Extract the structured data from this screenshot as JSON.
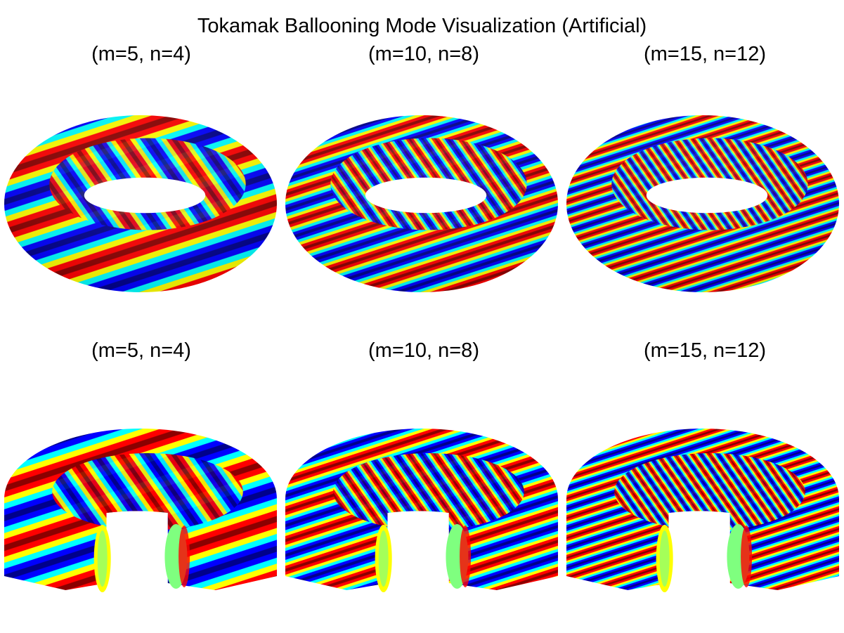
{
  "figure": {
    "title": "Tokamak Ballooning Mode Visualization (Artificial)",
    "colormap": [
      "#00008b",
      "#0000ff",
      "#00ffff",
      "#ffff00",
      "#ff0000",
      "#8b0000"
    ],
    "panels": [
      {
        "label": "(m=5, n=4)",
        "m": 5,
        "n": 4,
        "view": "full-torus"
      },
      {
        "label": "(m=10, n=8)",
        "m": 10,
        "n": 8,
        "view": "full-torus"
      },
      {
        "label": "(m=15, n=12)",
        "m": 15,
        "n": 12,
        "view": "full-torus"
      },
      {
        "label": "(m=5, n=4)",
        "m": 5,
        "n": 4,
        "view": "cutaway-torus"
      },
      {
        "label": "(m=10, n=8)",
        "m": 10,
        "n": 8,
        "view": "cutaway-torus"
      },
      {
        "label": "(m=15, n=12)",
        "m": 15,
        "n": 12,
        "view": "cutaway-torus"
      }
    ]
  }
}
